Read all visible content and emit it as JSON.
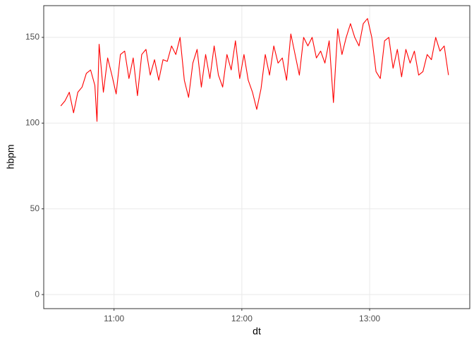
{
  "chart_data": {
    "type": "line",
    "xlabel": "dt",
    "ylabel": "hbpm",
    "color": "#ff0000",
    "grid": true,
    "x": [
      "10:35",
      "10:37",
      "10:39",
      "10:41",
      "10:43",
      "10:45",
      "10:47",
      "10:49",
      "10:51",
      "10:52",
      "10:53",
      "10:55",
      "10:57",
      "10:59",
      "11:01",
      "11:03",
      "11:05",
      "11:07",
      "11:09",
      "11:11",
      "11:13",
      "11:15",
      "11:17",
      "11:19",
      "11:21",
      "11:23",
      "11:25",
      "11:27",
      "11:29",
      "11:31",
      "11:33",
      "11:35",
      "11:37",
      "11:39",
      "11:41",
      "11:43",
      "11:45",
      "11:47",
      "11:49",
      "11:51",
      "11:53",
      "11:55",
      "11:57",
      "11:59",
      "12:01",
      "12:03",
      "12:05",
      "12:07",
      "12:09",
      "12:11",
      "12:13",
      "12:15",
      "12:17",
      "12:19",
      "12:21",
      "12:23",
      "12:25",
      "12:27",
      "12:29",
      "12:31",
      "12:33",
      "12:35",
      "12:37",
      "12:39",
      "12:41",
      "12:43",
      "12:45",
      "12:47",
      "12:49",
      "12:51",
      "12:53",
      "12:55",
      "12:57",
      "12:59",
      "13:01",
      "13:03",
      "13:05",
      "13:07",
      "13:09",
      "13:11",
      "13:13",
      "13:15",
      "13:17",
      "13:19",
      "13:21",
      "13:23",
      "13:25",
      "13:27",
      "13:29",
      "13:31",
      "13:33",
      "13:35",
      "13:37"
    ],
    "values": [
      110,
      113,
      118,
      106,
      118,
      121,
      129,
      131,
      122,
      101,
      146,
      118,
      138,
      128,
      117,
      140,
      142,
      126,
      138,
      116,
      140,
      143,
      128,
      137,
      125,
      137,
      136,
      145,
      140,
      150,
      125,
      115,
      135,
      143,
      121,
      140,
      126,
      145,
      128,
      121,
      140,
      131,
      148,
      126,
      140,
      125,
      118,
      108,
      120,
      140,
      128,
      145,
      135,
      138,
      125,
      152,
      140,
      128,
      150,
      145,
      150,
      138,
      142,
      135,
      148,
      112,
      155,
      140,
      150,
      158,
      150,
      145,
      158,
      161,
      150,
      130,
      126,
      148,
      150,
      132,
      143,
      127,
      143,
      135,
      142,
      128,
      130,
      140,
      137,
      150,
      142,
      145,
      128
    ],
    "xlim": [
      "10:27",
      "13:47"
    ],
    "xticks": [
      "11:00",
      "12:00",
      "13:00"
    ],
    "ylim": [
      -8.2,
      168.5
    ],
    "yticks": [
      0,
      50,
      100,
      150
    ]
  }
}
